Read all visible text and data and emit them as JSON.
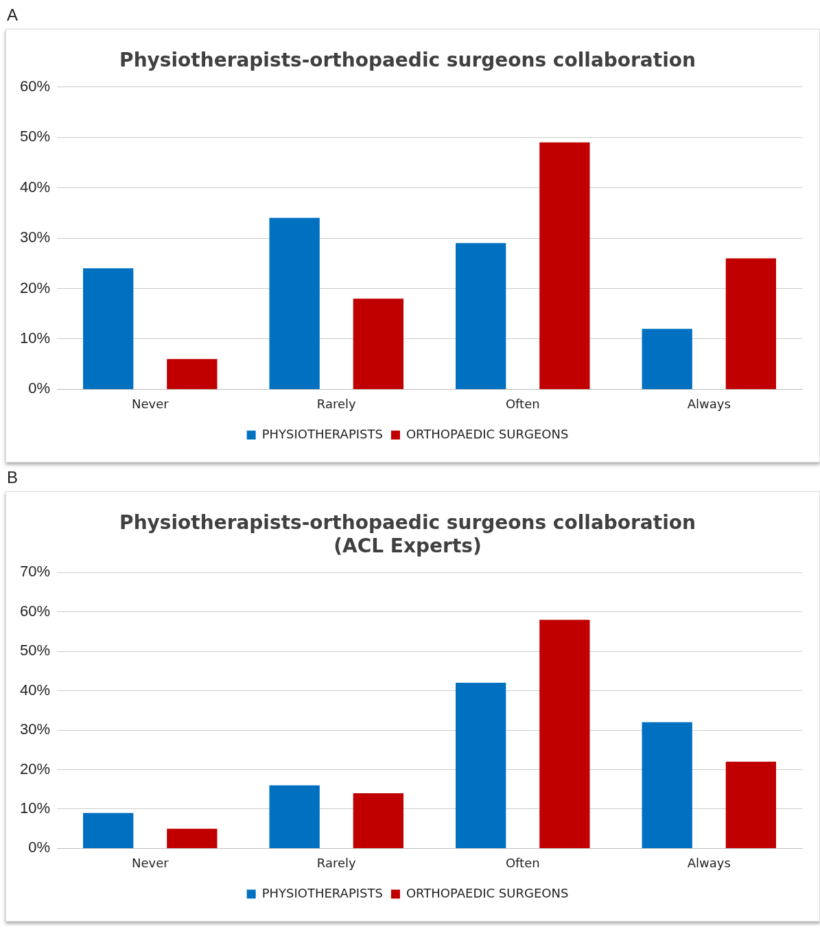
{
  "chart_data": [
    {
      "type": "bar",
      "title": "Physiotherapists-orthopaedic surgeons collaboration",
      "annotations": [
        "A"
      ],
      "categories": [
        "Never",
        "Rarely",
        "Often",
        "Always"
      ],
      "series": [
        {
          "name": "PHYSIOTHERAPISTS",
          "color": "#0070c0",
          "values": [
            24,
            34,
            29,
            12
          ]
        },
        {
          "name": "ORTHOPAEDIC SURGEONS",
          "color": "#c00000",
          "values": [
            6,
            18,
            49,
            26
          ]
        }
      ],
      "ylim": [
        0,
        60
      ],
      "yticks": [
        {
          "value": 0,
          "label": "0%"
        },
        {
          "value": 10,
          "label": "10%"
        },
        {
          "value": 20,
          "label": "20%"
        },
        {
          "value": 30,
          "label": "30%"
        },
        {
          "value": 40,
          "label": "40%"
        },
        {
          "value": 50,
          "label": "50%"
        },
        {
          "value": 60,
          "label": "60%"
        }
      ],
      "grid": "y",
      "legend": "bottom"
    },
    {
      "type": "bar",
      "title": "Physiotherapists-orthopaedic surgeons collaboration\n(ACL Experts)",
      "annotations": [
        "B"
      ],
      "categories": [
        "Never",
        "Rarely",
        "Often",
        "Always"
      ],
      "series": [
        {
          "name": "PHYSIOTHERAPISTS",
          "color": "#0070c0",
          "values": [
            9,
            16,
            42,
            32
          ]
        },
        {
          "name": "ORTHOPAEDIC SURGEONS",
          "color": "#c00000",
          "values": [
            5,
            14,
            58,
            22
          ]
        }
      ],
      "ylim": [
        0,
        70
      ],
      "yticks": [
        {
          "value": 0,
          "label": "0%"
        },
        {
          "value": 10,
          "label": "10%"
        },
        {
          "value": 20,
          "label": "20%"
        },
        {
          "value": 30,
          "label": "30%"
        },
        {
          "value": 40,
          "label": "40%"
        },
        {
          "value": 50,
          "label": "50%"
        },
        {
          "value": 60,
          "label": "60%"
        },
        {
          "value": 70,
          "label": "70%"
        }
      ],
      "grid": "y",
      "legend": "bottom"
    }
  ]
}
